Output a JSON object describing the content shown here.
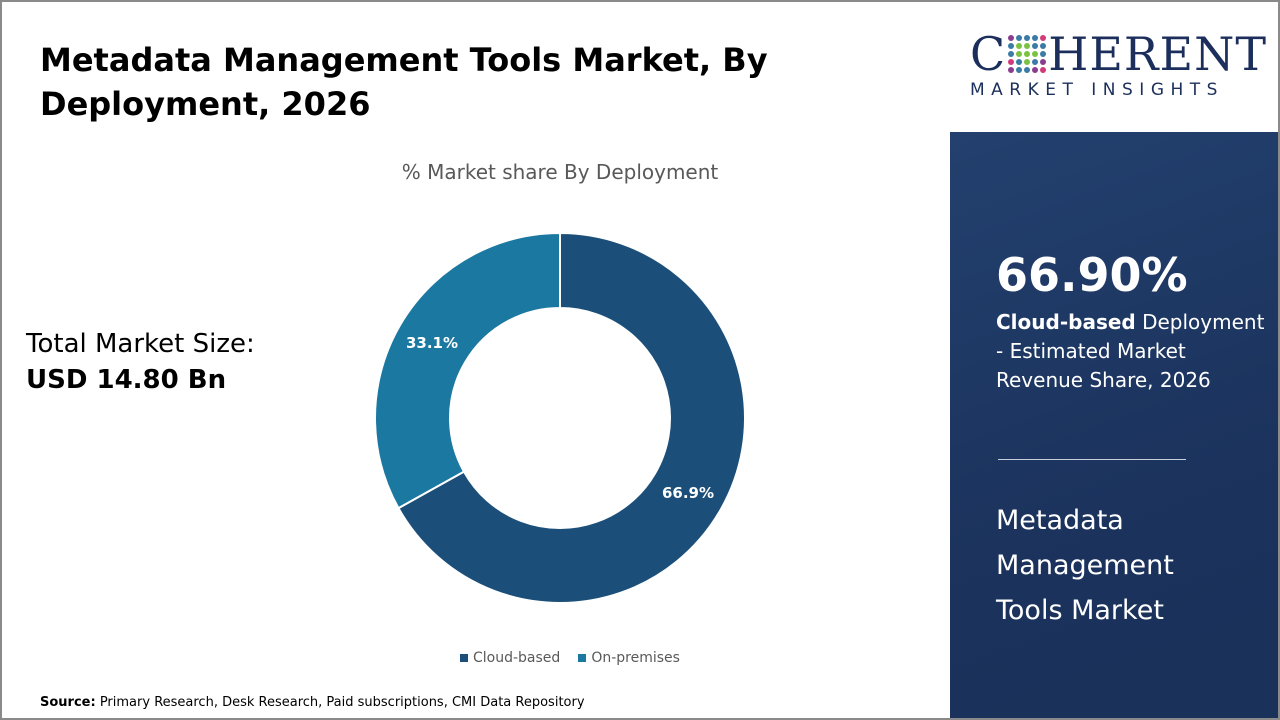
{
  "title": "Metadata Management Tools Market, By Deployment, 2026",
  "total": {
    "label": "Total Market Size:",
    "value": "USD 14.80 Bn"
  },
  "source": {
    "label": "Source:",
    "text": " Primary Research, Desk Research, Paid subscriptions, CMI Data Repository"
  },
  "logo": {
    "line1_pre": "C",
    "line1_post": "HERENT",
    "line2": "MARKET INSIGHTS"
  },
  "panel": {
    "percent": "66.90%",
    "highlight": "Cloud-based",
    "desc": " Deployment - Estimated Market Revenue Share, 2026",
    "market": "Metadata Management Tools Market"
  },
  "chart_data": {
    "type": "pie",
    "donut": true,
    "title": "% Market share By Deployment",
    "categories": [
      "Cloud-based",
      "On-premises"
    ],
    "values": [
      66.9,
      33.1
    ],
    "labels": [
      "66.9%",
      "33.1%"
    ],
    "colors": [
      "#1b4f7a",
      "#1b78a1"
    ],
    "legend": "bottom"
  }
}
